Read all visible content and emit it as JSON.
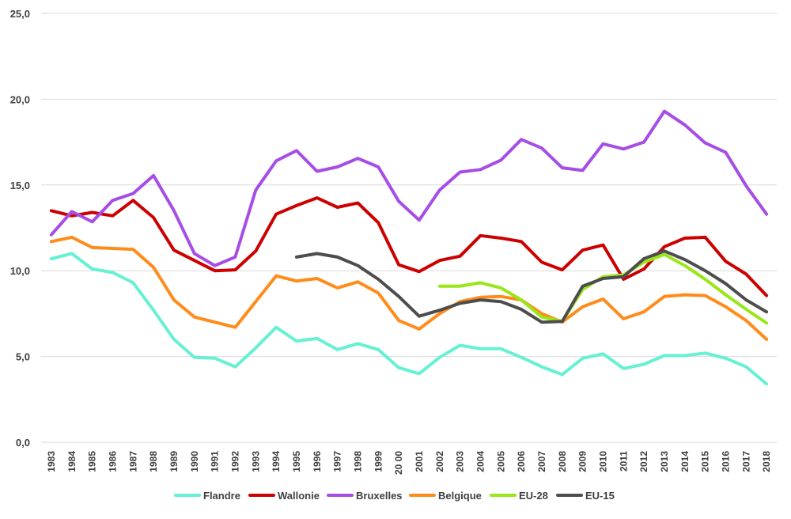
{
  "chart_data": {
    "type": "line",
    "x": [
      "1983",
      "1984",
      "1985",
      "1986",
      "1987",
      "1988",
      "1989",
      "1990",
      "1991",
      "1992",
      "1993",
      "1994",
      "1995",
      "1996",
      "1997",
      "1998",
      "1999",
      "20 00",
      "2001",
      "2002",
      "2003",
      "2004",
      "2005",
      "2006",
      "2007",
      "2008",
      "2009",
      "2010",
      "2011",
      "2012",
      "2013",
      "2014",
      "2015",
      "2016",
      "2017",
      "2018"
    ],
    "ylim": [
      0,
      25
    ],
    "yticks": [
      0,
      5,
      10,
      15,
      20,
      25
    ],
    "ytick_labels": [
      "0,0",
      "5,0",
      "10,0",
      "15,0",
      "20,0",
      "25,0"
    ],
    "grid": true,
    "legend_position": "bottom",
    "series": [
      {
        "name": "Flandre",
        "color": "#66F0D4",
        "values": [
          10.7,
          11.0,
          10.1,
          9.9,
          9.3,
          7.7,
          6.0,
          4.95,
          4.9,
          4.4,
          5.5,
          6.7,
          5.9,
          6.05,
          5.4,
          5.75,
          5.4,
          4.35,
          4.0,
          4.95,
          5.65,
          5.45,
          5.45,
          4.95,
          4.4,
          3.95,
          4.9,
          5.15,
          4.3,
          4.55,
          5.05,
          5.05,
          5.2,
          4.9,
          4.4,
          3.4
        ]
      },
      {
        "name": "Wallonie",
        "color": "#CC0000",
        "values": [
          13.5,
          13.2,
          13.4,
          13.2,
          14.1,
          13.1,
          11.2,
          10.6,
          10.0,
          10.05,
          11.15,
          13.3,
          13.8,
          14.25,
          13.7,
          13.95,
          12.8,
          10.35,
          9.95,
          10.6,
          10.85,
          12.05,
          11.9,
          11.7,
          10.5,
          10.05,
          11.2,
          11.5,
          9.5,
          10.1,
          11.4,
          11.9,
          11.95,
          10.55,
          9.8,
          8.55
        ]
      },
      {
        "name": "Bruxelles",
        "color": "#A64DE6",
        "values": [
          12.1,
          13.45,
          12.85,
          14.1,
          14.5,
          15.55,
          13.5,
          11.0,
          10.3,
          10.8,
          14.7,
          16.4,
          17.0,
          15.8,
          16.05,
          16.55,
          16.05,
          14.05,
          12.95,
          14.7,
          15.75,
          15.9,
          16.45,
          17.65,
          17.15,
          16.0,
          15.85,
          17.4,
          17.1,
          17.5,
          19.3,
          18.5,
          17.45,
          16.9,
          14.95,
          13.3
        ]
      },
      {
        "name": "Belgique",
        "color": "#FF8C1A",
        "values": [
          11.7,
          11.95,
          11.35,
          11.3,
          11.25,
          10.2,
          8.3,
          7.3,
          7.0,
          6.7,
          8.2,
          9.7,
          9.4,
          9.55,
          9.0,
          9.35,
          8.7,
          7.1,
          6.6,
          7.5,
          8.2,
          8.45,
          8.5,
          8.3,
          7.5,
          7.0,
          7.9,
          8.35,
          7.2,
          7.6,
          8.5,
          8.6,
          8.55,
          7.9,
          7.1,
          6.0
        ]
      },
      {
        "name": "EU-28",
        "color": "#99E619",
        "values": [
          null,
          null,
          null,
          null,
          null,
          null,
          null,
          null,
          null,
          null,
          null,
          null,
          null,
          null,
          null,
          null,
          null,
          null,
          null,
          9.1,
          9.1,
          9.3,
          9.0,
          8.3,
          7.3,
          7.05,
          8.9,
          9.65,
          9.75,
          10.5,
          10.95,
          10.3,
          9.5,
          8.6,
          7.75,
          6.95
        ]
      },
      {
        "name": "EU-15",
        "color": "#4D4D4D",
        "values": [
          null,
          null,
          null,
          null,
          null,
          null,
          null,
          null,
          null,
          null,
          null,
          null,
          10.8,
          11.0,
          10.8,
          10.3,
          9.5,
          8.5,
          7.35,
          7.7,
          8.1,
          8.3,
          8.2,
          7.75,
          7.0,
          7.05,
          9.1,
          9.55,
          9.65,
          10.7,
          11.15,
          10.65,
          10.0,
          9.25,
          8.3,
          7.6
        ]
      }
    ]
  }
}
